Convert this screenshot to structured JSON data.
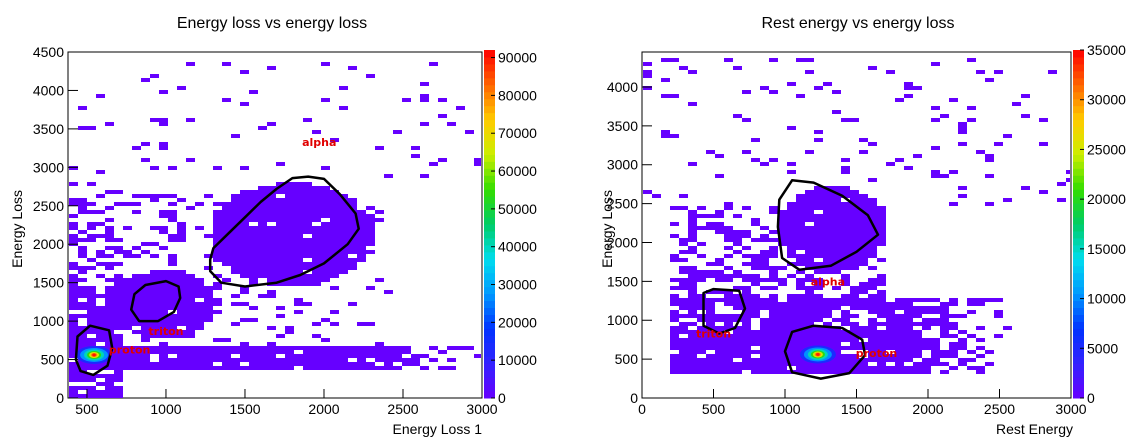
{
  "chart_data": [
    {
      "type": "heatmap",
      "title": "Energy loss vs energy loss",
      "xlabel": "Energy Loss 1",
      "ylabel": "Energy Loss",
      "xlim": [
        380,
        3000
      ],
      "ylim": [
        0,
        4500
      ],
      "xticks": [
        500,
        1000,
        1500,
        2000,
        2500,
        3000
      ],
      "yticks": [
        0,
        500,
        1000,
        1500,
        2000,
        2500,
        3000,
        3500,
        4000,
        4500
      ],
      "colorbar": {
        "range": [
          0,
          92000
        ],
        "ticks": [
          0,
          10000,
          20000,
          30000,
          40000,
          50000,
          60000,
          70000,
          80000,
          90000
        ]
      },
      "regions": [
        {
          "label": "alpha",
          "label_at": [
            1970,
            3280
          ],
          "contour": [
            [
              1300,
              1950
            ],
            [
              1400,
              2150
            ],
            [
              1500,
              2350
            ],
            [
              1600,
              2550
            ],
            [
              1700,
              2720
            ],
            [
              1800,
              2860
            ],
            [
              1900,
              2880
            ],
            [
              2000,
              2850
            ],
            [
              2100,
              2650
            ],
            [
              2200,
              2400
            ],
            [
              2220,
              2200
            ],
            [
              2150,
              2000
            ],
            [
              2000,
              1750
            ],
            [
              1850,
              1600
            ],
            [
              1700,
              1500
            ],
            [
              1500,
              1450
            ],
            [
              1350,
              1500
            ],
            [
              1280,
              1650
            ],
            [
              1280,
              1800
            ]
          ]
        },
        {
          "label": "triton",
          "label_at": [
            1000,
            820
          ],
          "contour": [
            [
              780,
              1150
            ],
            [
              800,
              1350
            ],
            [
              870,
              1470
            ],
            [
              1000,
              1520
            ],
            [
              1080,
              1450
            ],
            [
              1090,
              1300
            ],
            [
              1050,
              1120
            ],
            [
              950,
              1000
            ],
            [
              830,
              1000
            ]
          ]
        },
        {
          "label": "proton",
          "label_at": [
            770,
            580
          ],
          "contour": [
            [
              430,
              500
            ],
            [
              440,
              800
            ],
            [
              520,
              940
            ],
            [
              640,
              880
            ],
            [
              660,
              650
            ],
            [
              630,
              420
            ],
            [
              540,
              300
            ],
            [
              460,
              350
            ]
          ]
        }
      ],
      "hotspots": [
        {
          "x": 545,
          "y": 560,
          "value": 90000
        }
      ]
    },
    {
      "type": "heatmap",
      "title": "Rest energy vs energy loss",
      "xlabel": "Rest Energy",
      "ylabel": "Energy Loss",
      "xlim": [
        0,
        3000
      ],
      "ylim": [
        0,
        4450
      ],
      "xticks": [
        0,
        500,
        1000,
        1500,
        2000,
        2500,
        3000
      ],
      "yticks": [
        0,
        500,
        1000,
        1500,
        2000,
        2500,
        3000,
        3500,
        4000
      ],
      "colorbar": {
        "range": [
          0,
          35000
        ],
        "ticks": [
          0,
          5000,
          10000,
          15000,
          20000,
          25000,
          30000,
          35000
        ]
      },
      "regions": [
        {
          "label": "alpha",
          "label_at": [
            1300,
            1450
          ],
          "contour": [
            [
              950,
              2200
            ],
            [
              960,
              2550
            ],
            [
              1050,
              2800
            ],
            [
              1200,
              2770
            ],
            [
              1400,
              2600
            ],
            [
              1580,
              2350
            ],
            [
              1650,
              2100
            ],
            [
              1500,
              1880
            ],
            [
              1320,
              1700
            ],
            [
              1100,
              1650
            ],
            [
              980,
              1800
            ]
          ]
        },
        {
          "label": "triton",
          "label_at": [
            500,
            780
          ],
          "contour": [
            [
              430,
              1350
            ],
            [
              500,
              1400
            ],
            [
              680,
              1380
            ],
            [
              720,
              1150
            ],
            [
              650,
              900
            ],
            [
              540,
              830
            ],
            [
              430,
              930
            ]
          ]
        },
        {
          "label": "proton",
          "label_at": [
            1640,
            530
          ],
          "contour": [
            [
              1000,
              600
            ],
            [
              1050,
              850
            ],
            [
              1200,
              930
            ],
            [
              1400,
              900
            ],
            [
              1540,
              750
            ],
            [
              1560,
              550
            ],
            [
              1450,
              320
            ],
            [
              1250,
              250
            ],
            [
              1050,
              330
            ]
          ]
        }
      ],
      "hotspots": [
        {
          "x": 1230,
          "y": 560,
          "value": 34000
        }
      ]
    }
  ]
}
